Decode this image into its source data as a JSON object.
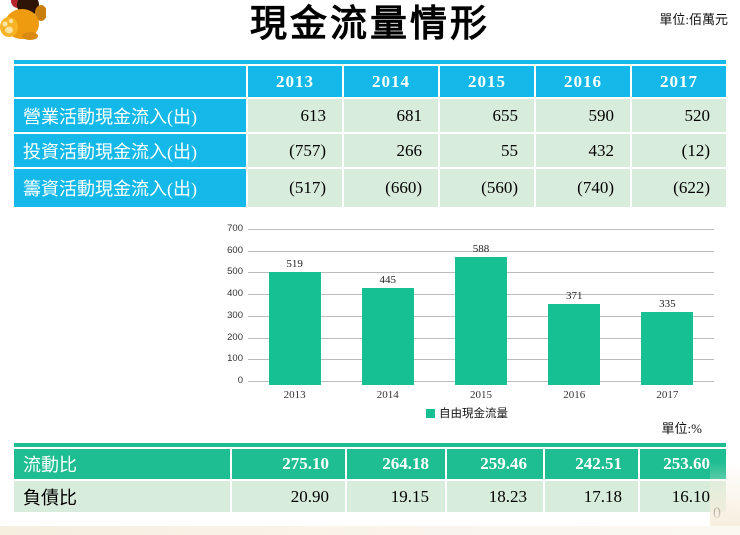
{
  "header": {
    "title": "現金流量情形",
    "unit_top": "單位:佰萬元"
  },
  "cashflow_table": {
    "columns": [
      "2013",
      "2014",
      "2015",
      "2016",
      "2017"
    ],
    "rows": [
      {
        "label": "營業活動現金流入(出)",
        "values": [
          "613",
          "681",
          "655",
          "590",
          "520"
        ]
      },
      {
        "label": "投資活動現金流入(出)",
        "values": [
          "(757)",
          "266",
          "55",
          "432",
          "(12)"
        ]
      },
      {
        "label": "籌資活動現金流入(出)",
        "values": [
          "(517)",
          "(660)",
          "(560)",
          "(740)",
          "(622)"
        ]
      }
    ]
  },
  "chart_data": {
    "type": "bar",
    "categories": [
      "2013",
      "2014",
      "2015",
      "2016",
      "2017"
    ],
    "values": [
      519,
      445,
      588,
      371,
      335
    ],
    "series_name": "自由現金流量",
    "title": "",
    "xlabel": "",
    "ylabel": "",
    "ylim": [
      0,
      700
    ],
    "ytick_step": 100,
    "grid": true,
    "legend_position": "bottom",
    "bar_color": "#16c093"
  },
  "unit_percent": "單位:%",
  "ratio_table": {
    "rows": [
      {
        "label": "流動比",
        "values": [
          "275.10",
          "264.18",
          "259.46",
          "242.51",
          "253.60"
        ]
      },
      {
        "label": "負債比",
        "values": [
          "20.90",
          "19.15",
          "18.23",
          "17.18",
          "16.10"
        ]
      }
    ]
  },
  "page_number": "0",
  "colors": {
    "table_cyan": "#14b9e9",
    "cell_light_green": "#d8ecdb",
    "ratio_header_green": "#1fbd92",
    "bar_green": "#16c093"
  }
}
